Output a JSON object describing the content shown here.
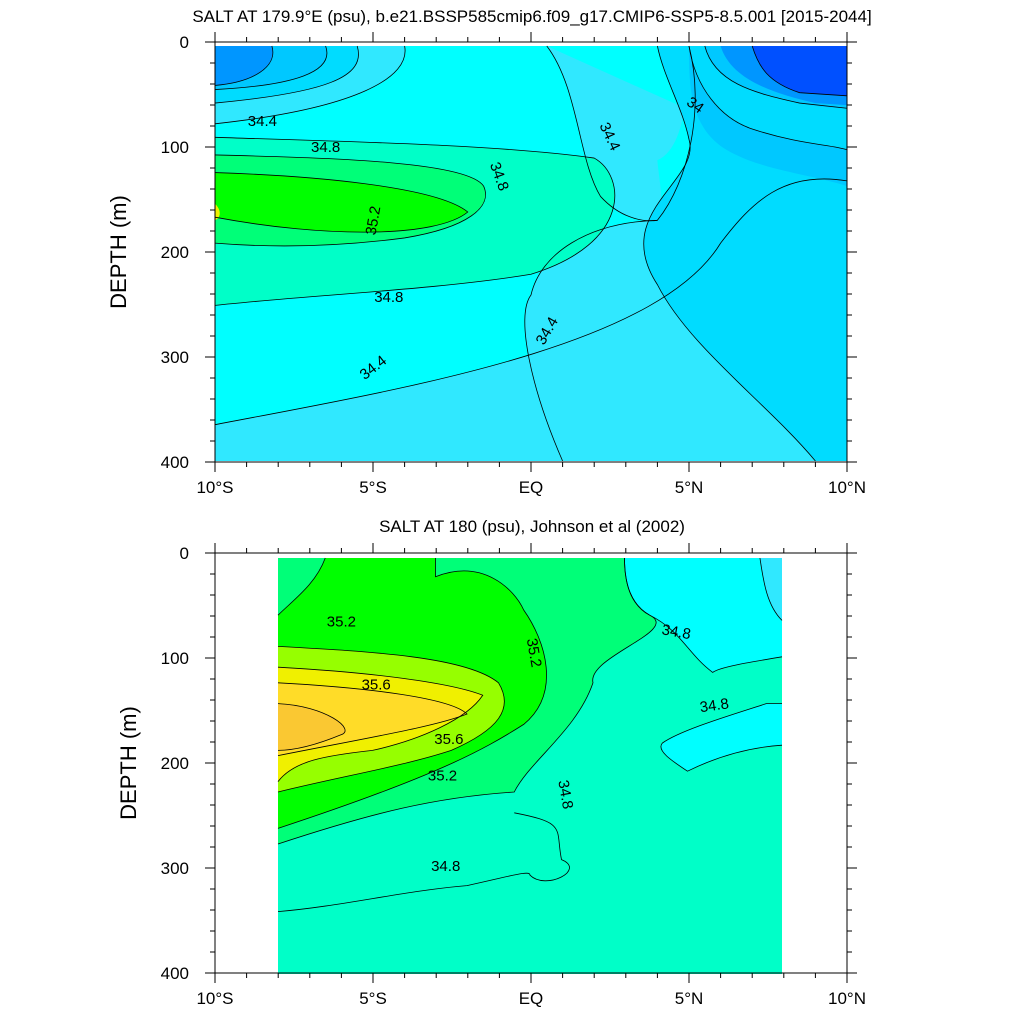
{
  "chart_data": [
    {
      "type": "contour",
      "title": "SALT AT 179.9°E (psu), b.e21.BSSP585cmip6.f09_g17.CMIP6-SSP5-8.5.001 [2015-2044]",
      "ylabel": "DEPTH (m)",
      "xlabel": "",
      "xlim": [
        -10,
        10
      ],
      "ylim": [
        0,
        400
      ],
      "y_reversed": true,
      "x_ticks": [
        {
          "v": -10,
          "label": "10°S"
        },
        {
          "v": -5,
          "label": "5°S"
        },
        {
          "v": 0,
          "label": "EQ"
        },
        {
          "v": 5,
          "label": "5°N"
        },
        {
          "v": 10,
          "label": "10°N"
        }
      ],
      "y_ticks": [
        {
          "v": 0,
          "label": "0"
        },
        {
          "v": 100,
          "label": "100"
        },
        {
          "v": 200,
          "label": "200"
        },
        {
          "v": 300,
          "label": "300"
        },
        {
          "v": 400,
          "label": "400"
        }
      ],
      "data_extent": {
        "x": [
          -10,
          10
        ],
        "y": [
          5,
          400
        ]
      },
      "fill_levels": [
        {
          "name": "33.6-33.8",
          "color": "#0050ff"
        },
        {
          "name": "33.8-34.0",
          "color": "#0096ff"
        },
        {
          "name": "34.0-34.2",
          "color": "#00c8ff"
        },
        {
          "name": "34.2-34.4",
          "color": "#00dcff"
        },
        {
          "name": "34.4-34.6",
          "color": "#30e8ff"
        },
        {
          "name": "34.6-34.8",
          "color": "#00ffff"
        },
        {
          "name": "34.8-35.0",
          "color": "#00ffc8"
        },
        {
          "name": "35.0-35.2",
          "color": "#00ff78"
        },
        {
          "name": "35.2-35.4",
          "color": "#00ff00"
        },
        {
          "name": "35.4-35.6",
          "color": "#f0f000"
        }
      ],
      "contour_labels": [
        {
          "text": "34.4",
          "x": -8.5,
          "y": 75,
          "angle": 0
        },
        {
          "text": "34.8",
          "x": -6.5,
          "y": 100,
          "angle": 0
        },
        {
          "text": "35.2",
          "x": -5.0,
          "y": 170,
          "angle": -80
        },
        {
          "text": "34.8",
          "x": -1.0,
          "y": 128,
          "angle": 70
        },
        {
          "text": "34.8",
          "x": -4.5,
          "y": 243,
          "angle": 0
        },
        {
          "text": "34.4",
          "x": -5.0,
          "y": 310,
          "angle": -38
        },
        {
          "text": "34.4",
          "x": 0.5,
          "y": 275,
          "angle": -60
        },
        {
          "text": "34.4",
          "x": 2.5,
          "y": 90,
          "angle": 65
        },
        {
          "text": "34",
          "x": 5.2,
          "y": 60,
          "angle": 35
        }
      ]
    },
    {
      "type": "contour",
      "title": "SALT AT 180 (psu), Johnson et al (2002)",
      "ylabel": "DEPTH (m)",
      "xlabel": "",
      "xlim": [
        -10,
        10
      ],
      "ylim": [
        0,
        400
      ],
      "y_reversed": true,
      "x_ticks": [
        {
          "v": -10,
          "label": "10°S"
        },
        {
          "v": -5,
          "label": "5°S"
        },
        {
          "v": 0,
          "label": "EQ"
        },
        {
          "v": 5,
          "label": "5°N"
        },
        {
          "v": 10,
          "label": "10°N"
        }
      ],
      "y_ticks": [
        {
          "v": 0,
          "label": "0"
        },
        {
          "v": 100,
          "label": "100"
        },
        {
          "v": 200,
          "label": "200"
        },
        {
          "v": 300,
          "label": "300"
        },
        {
          "v": 400,
          "label": "400"
        }
      ],
      "data_extent": {
        "x": [
          -8,
          8
        ],
        "y": [
          5,
          400
        ]
      },
      "fill_levels": [
        {
          "name": "34.4-34.6",
          "color": "#30e8ff"
        },
        {
          "name": "34.6-34.8",
          "color": "#00ffff"
        },
        {
          "name": "34.8-35.0",
          "color": "#00ffc8"
        },
        {
          "name": "35.0-35.2",
          "color": "#00ff78"
        },
        {
          "name": "35.2-35.4",
          "color": "#00ff00"
        },
        {
          "name": "35.4-35.6",
          "color": "#96ff00"
        },
        {
          "name": "35.6-35.8",
          "color": "#f0f000"
        },
        {
          "name": "35.8-36.0",
          "color": "#ffdc28"
        },
        {
          "name": "36.0-36.2",
          "color": "#fac832"
        }
      ],
      "contour_labels": [
        {
          "text": "35.2",
          "x": -6.0,
          "y": 65,
          "angle": 0
        },
        {
          "text": "35.6",
          "x": -4.9,
          "y": 125,
          "angle": 0
        },
        {
          "text": "35.6",
          "x": -2.6,
          "y": 177,
          "angle": 0
        },
        {
          "text": "35.2",
          "x": -2.8,
          "y": 212,
          "angle": 0
        },
        {
          "text": "35.2",
          "x": 0.1,
          "y": 95,
          "angle": 80
        },
        {
          "text": "34.8",
          "x": 1.1,
          "y": 230,
          "angle": 80
        },
        {
          "text": "34.8",
          "x": -2.7,
          "y": 298,
          "angle": 0
        },
        {
          "text": "34.8",
          "x": 4.6,
          "y": 75,
          "angle": 10
        },
        {
          "text": "34.8",
          "x": 5.8,
          "y": 145,
          "angle": -8
        }
      ]
    }
  ]
}
